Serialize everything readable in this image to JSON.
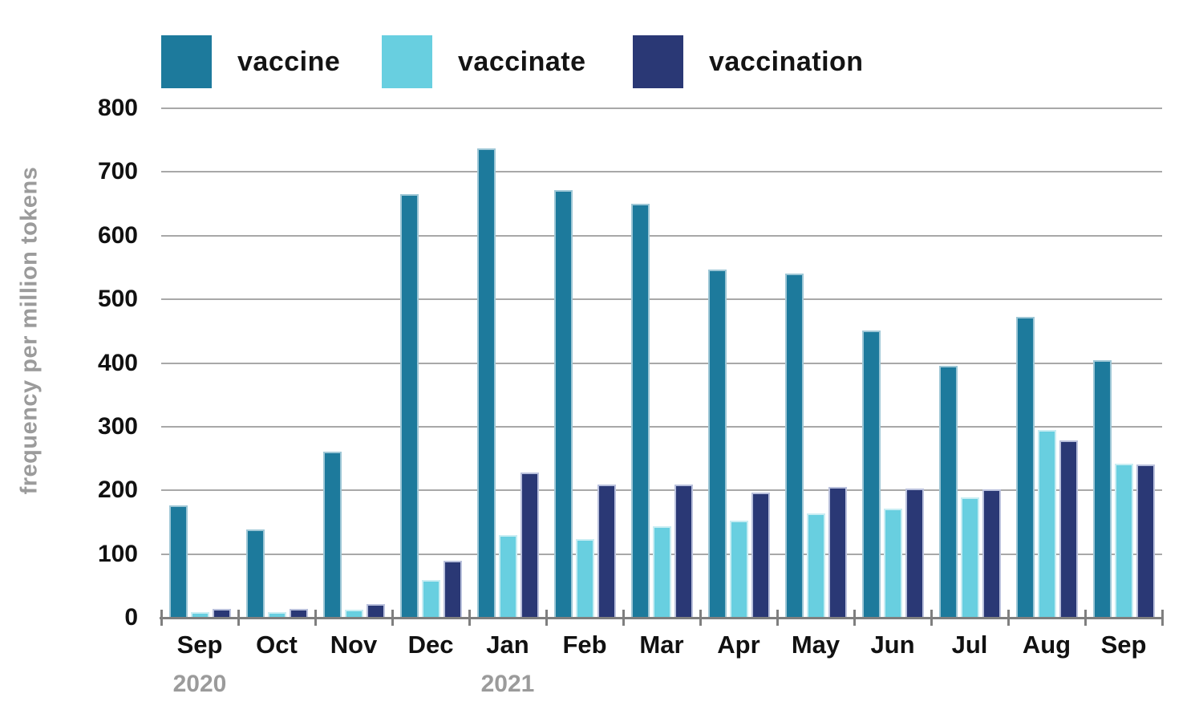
{
  "chart_data": {
    "type": "bar",
    "title": "",
    "xlabel": "",
    "ylabel": "frequency per million tokens",
    "ylim": [
      0,
      800
    ],
    "ytick_step": 100,
    "grid": true,
    "legend_position": "top",
    "categories": [
      "Sep",
      "Oct",
      "Nov",
      "Dec",
      "Jan",
      "Feb",
      "Mar",
      "Apr",
      "May",
      "Jun",
      "Jul",
      "Aug",
      "Sep"
    ],
    "year_markers": [
      {
        "label": "2020",
        "category_index": 0
      },
      {
        "label": "2021",
        "category_index": 4
      }
    ],
    "series": [
      {
        "name": "vaccine",
        "color": "#1d7a9c",
        "stroke": "#9ec7d6",
        "values": [
          177,
          138,
          261,
          665,
          737,
          671,
          650,
          547,
          540,
          451,
          395,
          472,
          404
        ]
      },
      {
        "name": "vaccinate",
        "color": "#68cfe0",
        "stroke": "#c8edf3",
        "values": [
          9,
          9,
          12,
          59,
          130,
          123,
          143,
          153,
          164,
          171,
          189,
          295,
          242
        ]
      },
      {
        "name": "vaccination",
        "color": "#2a3875",
        "stroke": "#b9c0dc",
        "values": [
          14,
          14,
          22,
          89,
          228,
          209,
          209,
          196,
          205,
          203,
          202,
          278,
          240
        ]
      }
    ]
  },
  "colors": {
    "background": "#ffffff",
    "gridline": "#a8a8a8",
    "axis_line": "#7f7f7f",
    "tick_label": "#111111",
    "year_label": "#9b9b9b",
    "y_axis_title": "#9b9b9b"
  }
}
